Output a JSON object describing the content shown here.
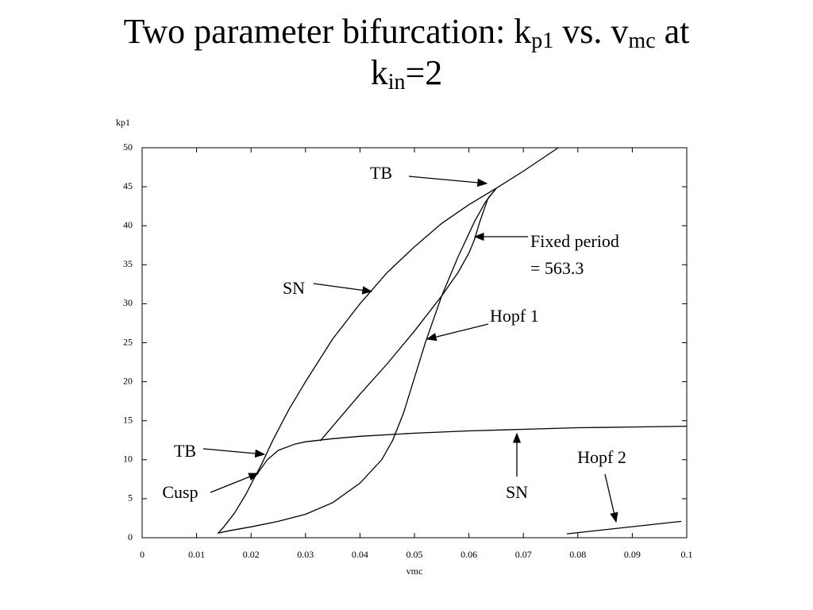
{
  "chart_data": {
    "type": "line",
    "title": [
      [
        "Two parameter bifurcation: k",
        "p1",
        " vs. v",
        "mc",
        " at"
      ],
      [
        "k",
        "in",
        "=2"
      ]
    ],
    "y_label": "kp1",
    "x_label": "vmc",
    "xlim": [
      0,
      0.1
    ],
    "xticks": [
      0,
      0.01,
      0.02,
      0.03,
      0.04,
      0.05,
      0.06,
      0.07,
      0.08,
      0.09,
      0.1
    ],
    "ylim": [
      0,
      50
    ],
    "yticks": [
      0,
      5,
      10,
      15,
      20,
      25,
      30,
      35,
      40,
      45,
      50
    ],
    "series": [
      {
        "color": "#000000",
        "x": [
          0.0207,
          0.022,
          0.024,
          0.027,
          0.03,
          0.035,
          0.04,
          0.045,
          0.05,
          0.055,
          0.06,
          0.065,
          0.07,
          0.0764
        ],
        "values": [
          7.8,
          9.5,
          12.5,
          16.5,
          20,
          25.5,
          30,
          34,
          37.3,
          40.3,
          42.7,
          44.8,
          47,
          50
        ]
      },
      {
        "color": "#000000",
        "x": [
          0.0207,
          0.019,
          0.017,
          0.015,
          0.014,
          0.016,
          0.02,
          0.025,
          0.03,
          0.035,
          0.04,
          0.044,
          0.046,
          0.048,
          0.05,
          0.052,
          0.055,
          0.058,
          0.061,
          0.063,
          0.065
        ],
        "values": [
          7.8,
          5.5,
          3.2,
          1.4,
          0.6,
          0.9,
          1.4,
          2.1,
          3,
          4.5,
          7,
          10,
          12.5,
          16,
          20.5,
          25,
          31,
          36,
          40.5,
          43,
          44.8
        ]
      },
      {
        "color": "#000000",
        "x": [
          0.0207,
          0.023,
          0.025,
          0.028,
          0.03,
          0.035,
          0.04,
          0.05,
          0.06,
          0.07,
          0.08,
          0.09,
          0.1
        ],
        "values": [
          7.8,
          10,
          11.2,
          12,
          12.3,
          12.7,
          13,
          13.4,
          13.7,
          13.9,
          14.1,
          14.2,
          14.3
        ]
      },
      {
        "color": "#000000",
        "x": [
          0.0327,
          0.04,
          0.045,
          0.05,
          0.055,
          0.058,
          0.06,
          0.061,
          0.062,
          0.0635,
          0.065
        ],
        "values": [
          12.4,
          18.4,
          22.3,
          26.5,
          31,
          34,
          36.5,
          38.2,
          40.5,
          43.5,
          44.8
        ]
      },
      {
        "color": "#000000",
        "x": [
          0.078,
          0.099
        ],
        "values": [
          0.5,
          2.1
        ]
      }
    ],
    "annotations": [
      "TB",
      "SN",
      "Fixed period",
      "= 563.3",
      "Hopf 1",
      "TB",
      "Cusp",
      "SN",
      "Hopf 2"
    ]
  }
}
